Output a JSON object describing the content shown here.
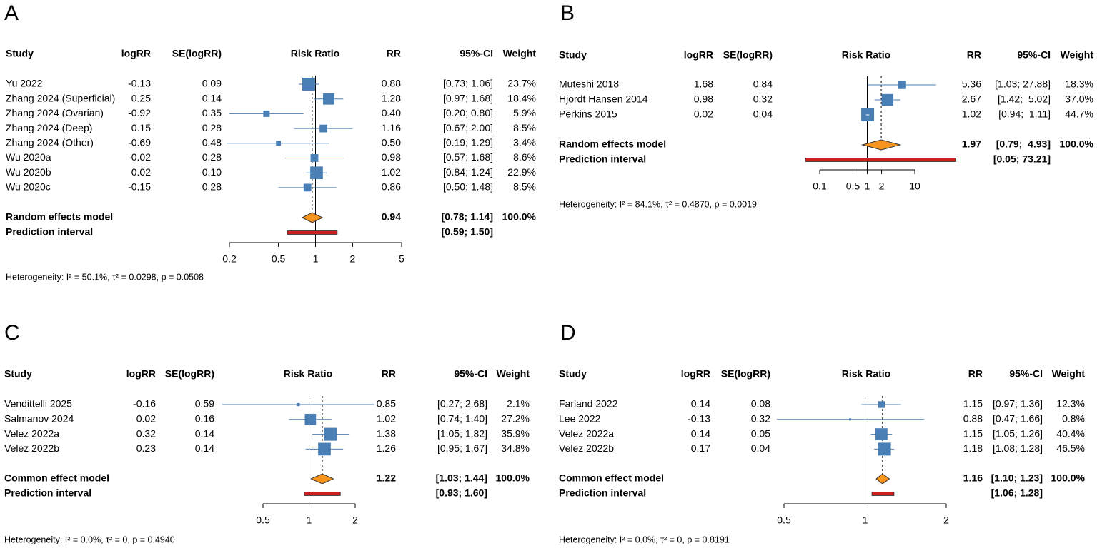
{
  "chart_data": [
    {
      "type": "forest",
      "label": "A",
      "columns": [
        "Study",
        "logRR",
        "SE(logRR)",
        "Risk Ratio",
        "RR",
        "95%-CI",
        "Weight"
      ],
      "studies": [
        "Yu 2022",
        "Zhang 2024 (Superficial)",
        "Zhang 2024 (Ovarian)",
        "Zhang 2024 (Deep)",
        "Zhang 2024 (Other)",
        "Wu 2020a",
        "Wu 2020b",
        "Wu 2020c"
      ],
      "logrr": [
        "-0.13",
        "0.25",
        "-0.92",
        "0.15",
        "-0.69",
        "-0.02",
        "0.02",
        "-0.15"
      ],
      "se": [
        "0.09",
        "0.14",
        "0.35",
        "0.28",
        "0.48",
        "0.28",
        "0.10",
        "0.28"
      ],
      "rr": [
        0.88,
        1.28,
        0.4,
        1.16,
        0.5,
        0.98,
        1.02,
        0.86
      ],
      "rr_labels": [
        "0.88",
        "1.28",
        "0.40",
        "1.16",
        "0.50",
        "0.98",
        "1.02",
        "0.86"
      ],
      "ci_low": [
        0.73,
        0.97,
        0.2,
        0.67,
        0.19,
        0.57,
        0.84,
        0.5
      ],
      "ci_high": [
        1.06,
        1.68,
        0.8,
        2.0,
        1.29,
        1.68,
        1.24,
        1.48
      ],
      "ci_labels": [
        "[0.73; 1.06]",
        "[0.97; 1.68]",
        "[0.20; 0.80]",
        "[0.67; 2.00]",
        "[0.19; 1.29]",
        "[0.57; 1.68]",
        "[0.84; 1.24]",
        "[0.50; 1.48]"
      ],
      "weights": [
        23.7,
        18.4,
        5.9,
        8.5,
        3.4,
        8.6,
        22.9,
        8.5
      ],
      "weight_labels": [
        "23.7%",
        "18.4%",
        "5.9%",
        "8.5%",
        "3.4%",
        "8.6%",
        "22.9%",
        "8.5%"
      ],
      "summary": {
        "name": "Random effects model",
        "rr": 0.94,
        "rr_label": "0.94",
        "ci_low": 0.78,
        "ci_high": 1.14,
        "ci_label": "[0.78; 1.14]",
        "weight_label": "100.0%"
      },
      "prediction": {
        "name": "Prediction interval",
        "low": 0.59,
        "high": 1.5,
        "label": "[0.59; 1.50]"
      },
      "xlim": [
        0.2,
        5
      ],
      "xticks": [
        0.2,
        0.5,
        1,
        2,
        5
      ],
      "log_scale": true,
      "heterogeneity": "Heterogeneity: I² = 50.1%, τ² = 0.0298, p = 0.0508",
      "color": "#4a7fb5",
      "summary_color": "#f7941d",
      "prediction_color": "#cc1f1f"
    },
    {
      "type": "forest",
      "label": "B",
      "columns": [
        "Study",
        "logRR",
        "SE(logRR)",
        "Risk Ratio",
        "RR",
        "95%-CI",
        "Weight"
      ],
      "studies": [
        "Muteshi 2018",
        "Hjordt Hansen 2014",
        "Perkins 2015"
      ],
      "logrr": [
        "1.68",
        "0.98",
        "0.02"
      ],
      "se": [
        "0.84",
        "0.32",
        "0.04"
      ],
      "rr": [
        5.36,
        2.67,
        1.02
      ],
      "rr_labels": [
        "5.36",
        "2.67",
        "1.02"
      ],
      "ci_low": [
        1.03,
        1.42,
        0.94
      ],
      "ci_high": [
        27.88,
        5.02,
        1.11
      ],
      "ci_labels": [
        "[1.03; 27.88]",
        "[1.42;  5.02]",
        "[0.94;  1.11]"
      ],
      "weights": [
        18.3,
        37.0,
        44.7
      ],
      "weight_labels": [
        "18.3%",
        "37.0%",
        "44.7%"
      ],
      "summary": {
        "name": "Random effects model",
        "rr": 1.97,
        "rr_label": "1.97",
        "ci_low": 0.79,
        "ci_high": 4.93,
        "ci_label": "[0.79;  4.93]",
        "weight_label": "100.0%"
      },
      "prediction": {
        "name": "Prediction interval",
        "low": 0.05,
        "high": 73.21,
        "label": "[0.05; 73.21]"
      },
      "xlim": [
        0.1,
        10
      ],
      "xticks": [
        0.1,
        0.5,
        1,
        2,
        10
      ],
      "log_scale": true,
      "heterogeneity": "Heterogeneity: I² = 84.1%, τ² = 0.4870, p = 0.0019",
      "color": "#4a7fb5",
      "summary_color": "#f7941d",
      "prediction_color": "#cc1f1f"
    },
    {
      "type": "forest",
      "label": "C",
      "columns": [
        "Study",
        "logRR",
        "SE(logRR)",
        "Risk Ratio",
        "RR",
        "95%-CI",
        "Weight"
      ],
      "studies": [
        "Vendittelli 2025",
        "Salmanov 2024",
        "Velez 2022a",
        "Velez 2022b"
      ],
      "logrr": [
        "-0.16",
        "0.02",
        "0.32",
        "0.23"
      ],
      "se": [
        "0.59",
        "0.16",
        "0.14",
        "0.14"
      ],
      "rr": [
        0.85,
        1.02,
        1.38,
        1.26
      ],
      "rr_labels": [
        "0.85",
        "1.02",
        "1.38",
        "1.26"
      ],
      "ci_low": [
        0.27,
        0.74,
        1.05,
        0.95
      ],
      "ci_high": [
        2.68,
        1.4,
        1.82,
        1.67
      ],
      "ci_labels": [
        "[0.27; 2.68]",
        "[0.74; 1.40]",
        "[1.05; 1.82]",
        "[0.95; 1.67]"
      ],
      "weights": [
        2.1,
        27.2,
        35.9,
        34.8
      ],
      "weight_labels": [
        "2.1%",
        "27.2%",
        "35.9%",
        "34.8%"
      ],
      "summary": {
        "name": "Common effect model",
        "rr": 1.22,
        "rr_label": "1.22",
        "ci_low": 1.03,
        "ci_high": 1.44,
        "ci_label": "[1.03; 1.44]",
        "weight_label": "100.0%"
      },
      "prediction": {
        "name": "Prediction interval",
        "low": 0.93,
        "high": 1.6,
        "label": "[0.93; 1.60]"
      },
      "xlim": [
        0.5,
        2
      ],
      "xticks": [
        0.5,
        1,
        2
      ],
      "log_scale": true,
      "heterogeneity": "Heterogeneity: I² = 0.0%, τ² = 0, p = 0.4940",
      "color": "#4a7fb5",
      "summary_color": "#f7941d",
      "prediction_color": "#cc1f1f"
    },
    {
      "type": "forest",
      "label": "D",
      "columns": [
        "Study",
        "logRR",
        "SE(logRR)",
        "Risk Ratio",
        "RR",
        "95%-CI",
        "Weight"
      ],
      "studies": [
        "Farland 2022",
        "Lee 2022",
        "Velez 2022a",
        "Velez 2022b"
      ],
      "logrr": [
        "0.14",
        "-0.13",
        "0.14",
        "0.17"
      ],
      "se": [
        "0.08",
        "0.32",
        "0.05",
        "0.04"
      ],
      "rr": [
        1.15,
        0.88,
        1.15,
        1.18
      ],
      "rr_labels": [
        "1.15",
        "0.88",
        "1.15",
        "1.18"
      ],
      "ci_low": [
        0.97,
        0.47,
        1.05,
        1.08
      ],
      "ci_high": [
        1.36,
        1.66,
        1.26,
        1.28
      ],
      "ci_labels": [
        "[0.97; 1.36]",
        "[0.47; 1.66]",
        "[1.05; 1.26]",
        "[1.08; 1.28]"
      ],
      "weights": [
        12.3,
        0.8,
        40.4,
        46.5
      ],
      "weight_labels": [
        "12.3%",
        "0.8%",
        "40.4%",
        "46.5%"
      ],
      "summary": {
        "name": "Common effect model",
        "rr": 1.16,
        "rr_label": "1.16",
        "ci_low": 1.1,
        "ci_high": 1.23,
        "ci_label": "[1.10; 1.23]",
        "weight_label": "100.0%"
      },
      "prediction": {
        "name": "Prediction interval",
        "low": 1.06,
        "high": 1.28,
        "label": "[1.06; 1.28]"
      },
      "xlim": [
        0.5,
        2
      ],
      "xticks": [
        0.5,
        1,
        2
      ],
      "log_scale": true,
      "heterogeneity": "Heterogeneity: I² = 0.0%, τ² = 0, p = 0.8191",
      "color": "#4a7fb5",
      "summary_color": "#f7941d",
      "prediction_color": "#cc1f1f"
    }
  ]
}
